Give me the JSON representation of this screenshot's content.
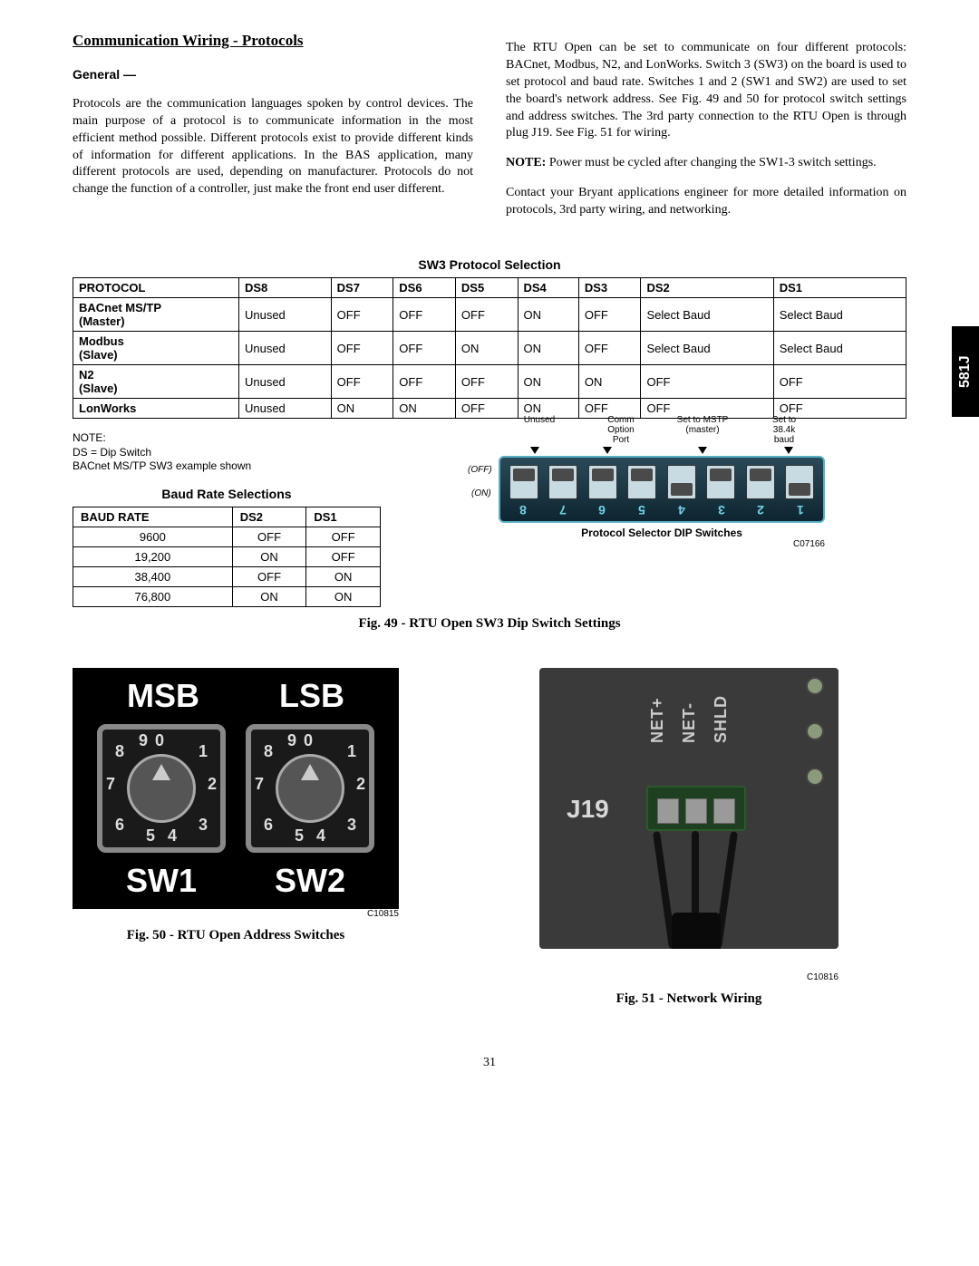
{
  "side_tab": "581J",
  "page_number": "31",
  "section_title": "Communication Wiring - Protocols",
  "general_heading": "General —",
  "general_text": "Protocols are the communication languages spoken by control devices. The main purpose of a protocol is to communicate information in the most efficient method possible. Different protocols exist to provide different kinds of information for different applications. In the BAS application, many different protocols are used, depending on manufacturer. Protocols do not change the function of a controller, just make the front end user different.",
  "col2_p1": "The RTU Open can be set to communicate on four different protocols: BACnet, Modbus, N2, and LonWorks. Switch 3 (SW3) on the board is used to set protocol and baud rate. Switches 1 and 2 (SW1 and SW2) are used to set the board's network address. See Fig. 49 and 50 for protocol switch settings and address switches. The 3rd party connection to the RTU Open is through plug J19. See Fig. 51 for wiring.",
  "col2_note_label": "NOTE:",
  "col2_note": " Power must be cycled after changing the SW1-3 switch settings.",
  "col2_p2": "Contact your Bryant applications engineer for more detailed information on protocols, 3rd party wiring, and networking.",
  "table1_title": "SW3 Protocol Selection",
  "table1_headers": [
    "PROTOCOL",
    "DS8",
    "DS7",
    "DS6",
    "DS5",
    "DS4",
    "DS3",
    "DS2",
    "DS1"
  ],
  "table1_rows": [
    [
      "BACnet MS/TP\n(Master)",
      "Unused",
      "OFF",
      "OFF",
      "OFF",
      "ON",
      "OFF",
      "Select Baud",
      "Select Baud"
    ],
    [
      "Modbus\n(Slave)",
      "Unused",
      "OFF",
      "OFF",
      "ON",
      "ON",
      "OFF",
      "Select Baud",
      "Select Baud"
    ],
    [
      "N2\n(Slave)",
      "Unused",
      "OFF",
      "OFF",
      "OFF",
      "ON",
      "ON",
      "OFF",
      "OFF"
    ],
    [
      "LonWorks",
      "Unused",
      "ON",
      "ON",
      "OFF",
      "ON",
      "OFF",
      "OFF",
      "OFF"
    ]
  ],
  "table1_note": "NOTE:\nDS = Dip Switch\nBACnet MS/TP SW3 example shown",
  "table2_title": "Baud Rate Selections",
  "table2_headers": [
    "BAUD RATE",
    "DS2",
    "DS1"
  ],
  "table2_rows": [
    [
      "9600",
      "OFF",
      "OFF"
    ],
    [
      "19,200",
      "ON",
      "OFF"
    ],
    [
      "38,400",
      "OFF",
      "ON"
    ],
    [
      "76,800",
      "ON",
      "ON"
    ]
  ],
  "dip": {
    "top_labels": [
      "Unused",
      "Comm\nOption\nPort",
      "Set to MSTP\n(master)",
      "Set to\n38.4k\nbaud"
    ],
    "off_label": "(OFF)",
    "on_label": "(ON)",
    "numbers": [
      "8",
      "7",
      "6",
      "5",
      "4",
      "3",
      "2",
      "1"
    ],
    "states": [
      "up",
      "up",
      "up",
      "up",
      "down",
      "up",
      "up",
      "down"
    ],
    "caption": "Protocol Selector DIP Switches",
    "code": "C07166"
  },
  "fig49_caption": "Fig. 49 - RTU Open SW3 Dip Switch Settings",
  "rotary": {
    "msb": "MSB",
    "lsb": "LSB",
    "sw1": "SW1",
    "sw2": "SW2",
    "digits": [
      "0",
      "1",
      "2",
      "3",
      "4",
      "5",
      "6",
      "7",
      "8",
      "9"
    ],
    "code": "C10815"
  },
  "fig50_caption": "Fig. 50 - RTU Open Address Switches",
  "netwire": {
    "j19": "J19",
    "terms": [
      "NET+",
      "NET-",
      "SHLD"
    ],
    "code": "C10816"
  },
  "fig51_caption": "Fig. 51 - Network Wiring"
}
